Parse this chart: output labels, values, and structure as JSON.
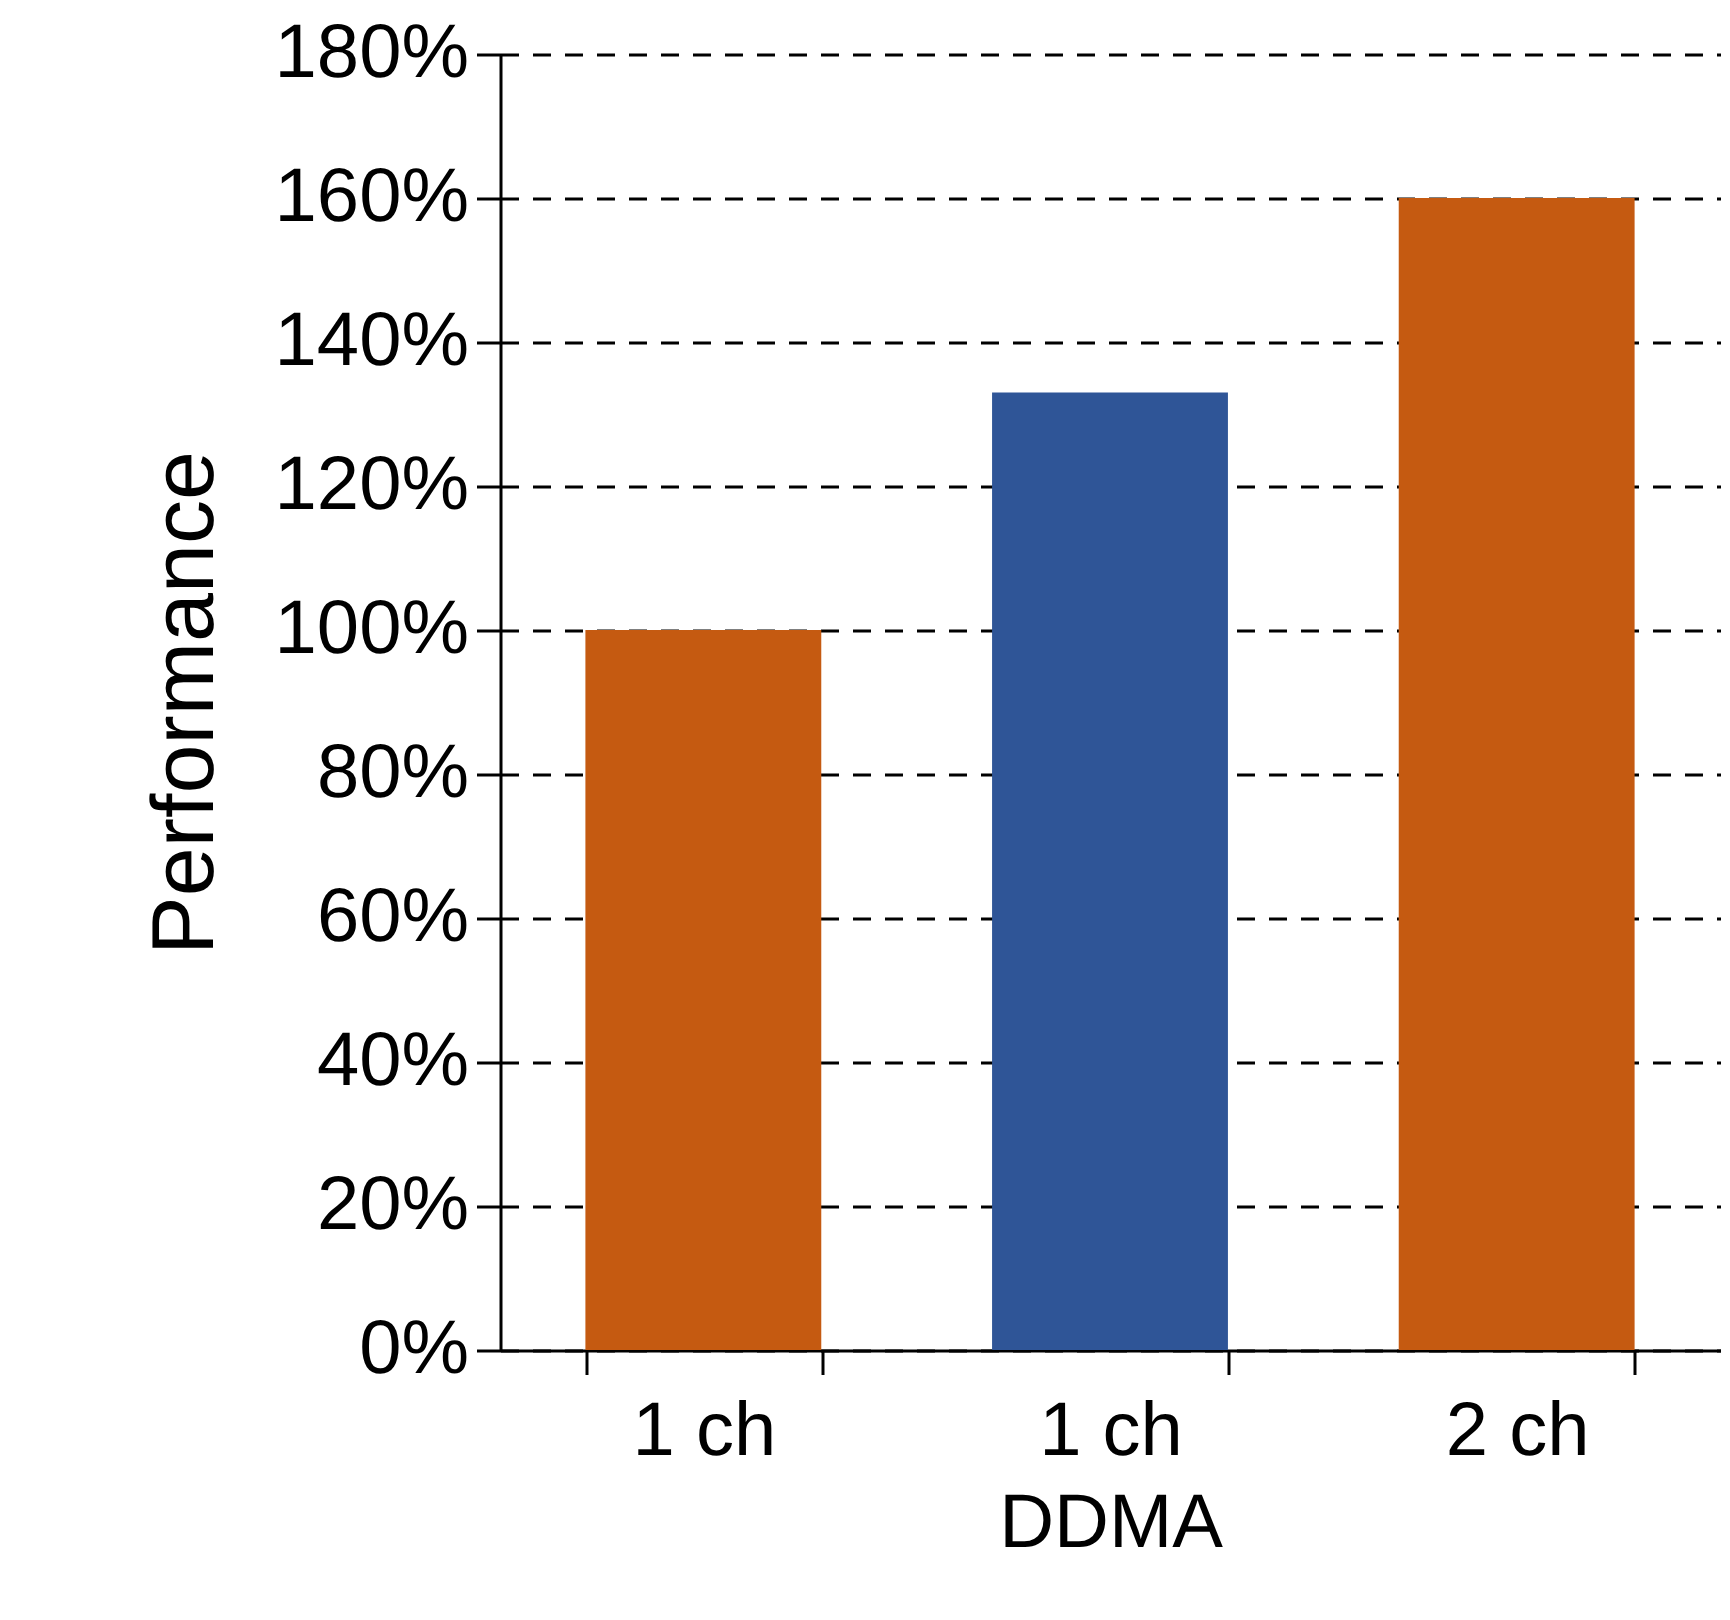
{
  "chart_data": {
    "type": "bar",
    "xlabel": "DDMA",
    "ylabel": "Performance",
    "categories": [
      "1 ch",
      "1 ch",
      "2 ch"
    ],
    "values": [
      100,
      133,
      160
    ],
    "colors": [
      "#c55a11",
      "#2f5597",
      "#c55a11"
    ],
    "ylim": [
      0,
      180
    ],
    "yticks": [
      {
        "value": 0,
        "label": "0%"
      },
      {
        "value": 20,
        "label": "20%"
      },
      {
        "value": 40,
        "label": "40%"
      },
      {
        "value": 60,
        "label": "60%"
      },
      {
        "value": 80,
        "label": "80%"
      },
      {
        "value": 100,
        "label": "100%"
      },
      {
        "value": 120,
        "label": "120%"
      },
      {
        "value": 140,
        "label": "140%"
      },
      {
        "value": 160,
        "label": "160%"
      },
      {
        "value": 180,
        "label": "180%"
      }
    ],
    "grid": "y"
  }
}
